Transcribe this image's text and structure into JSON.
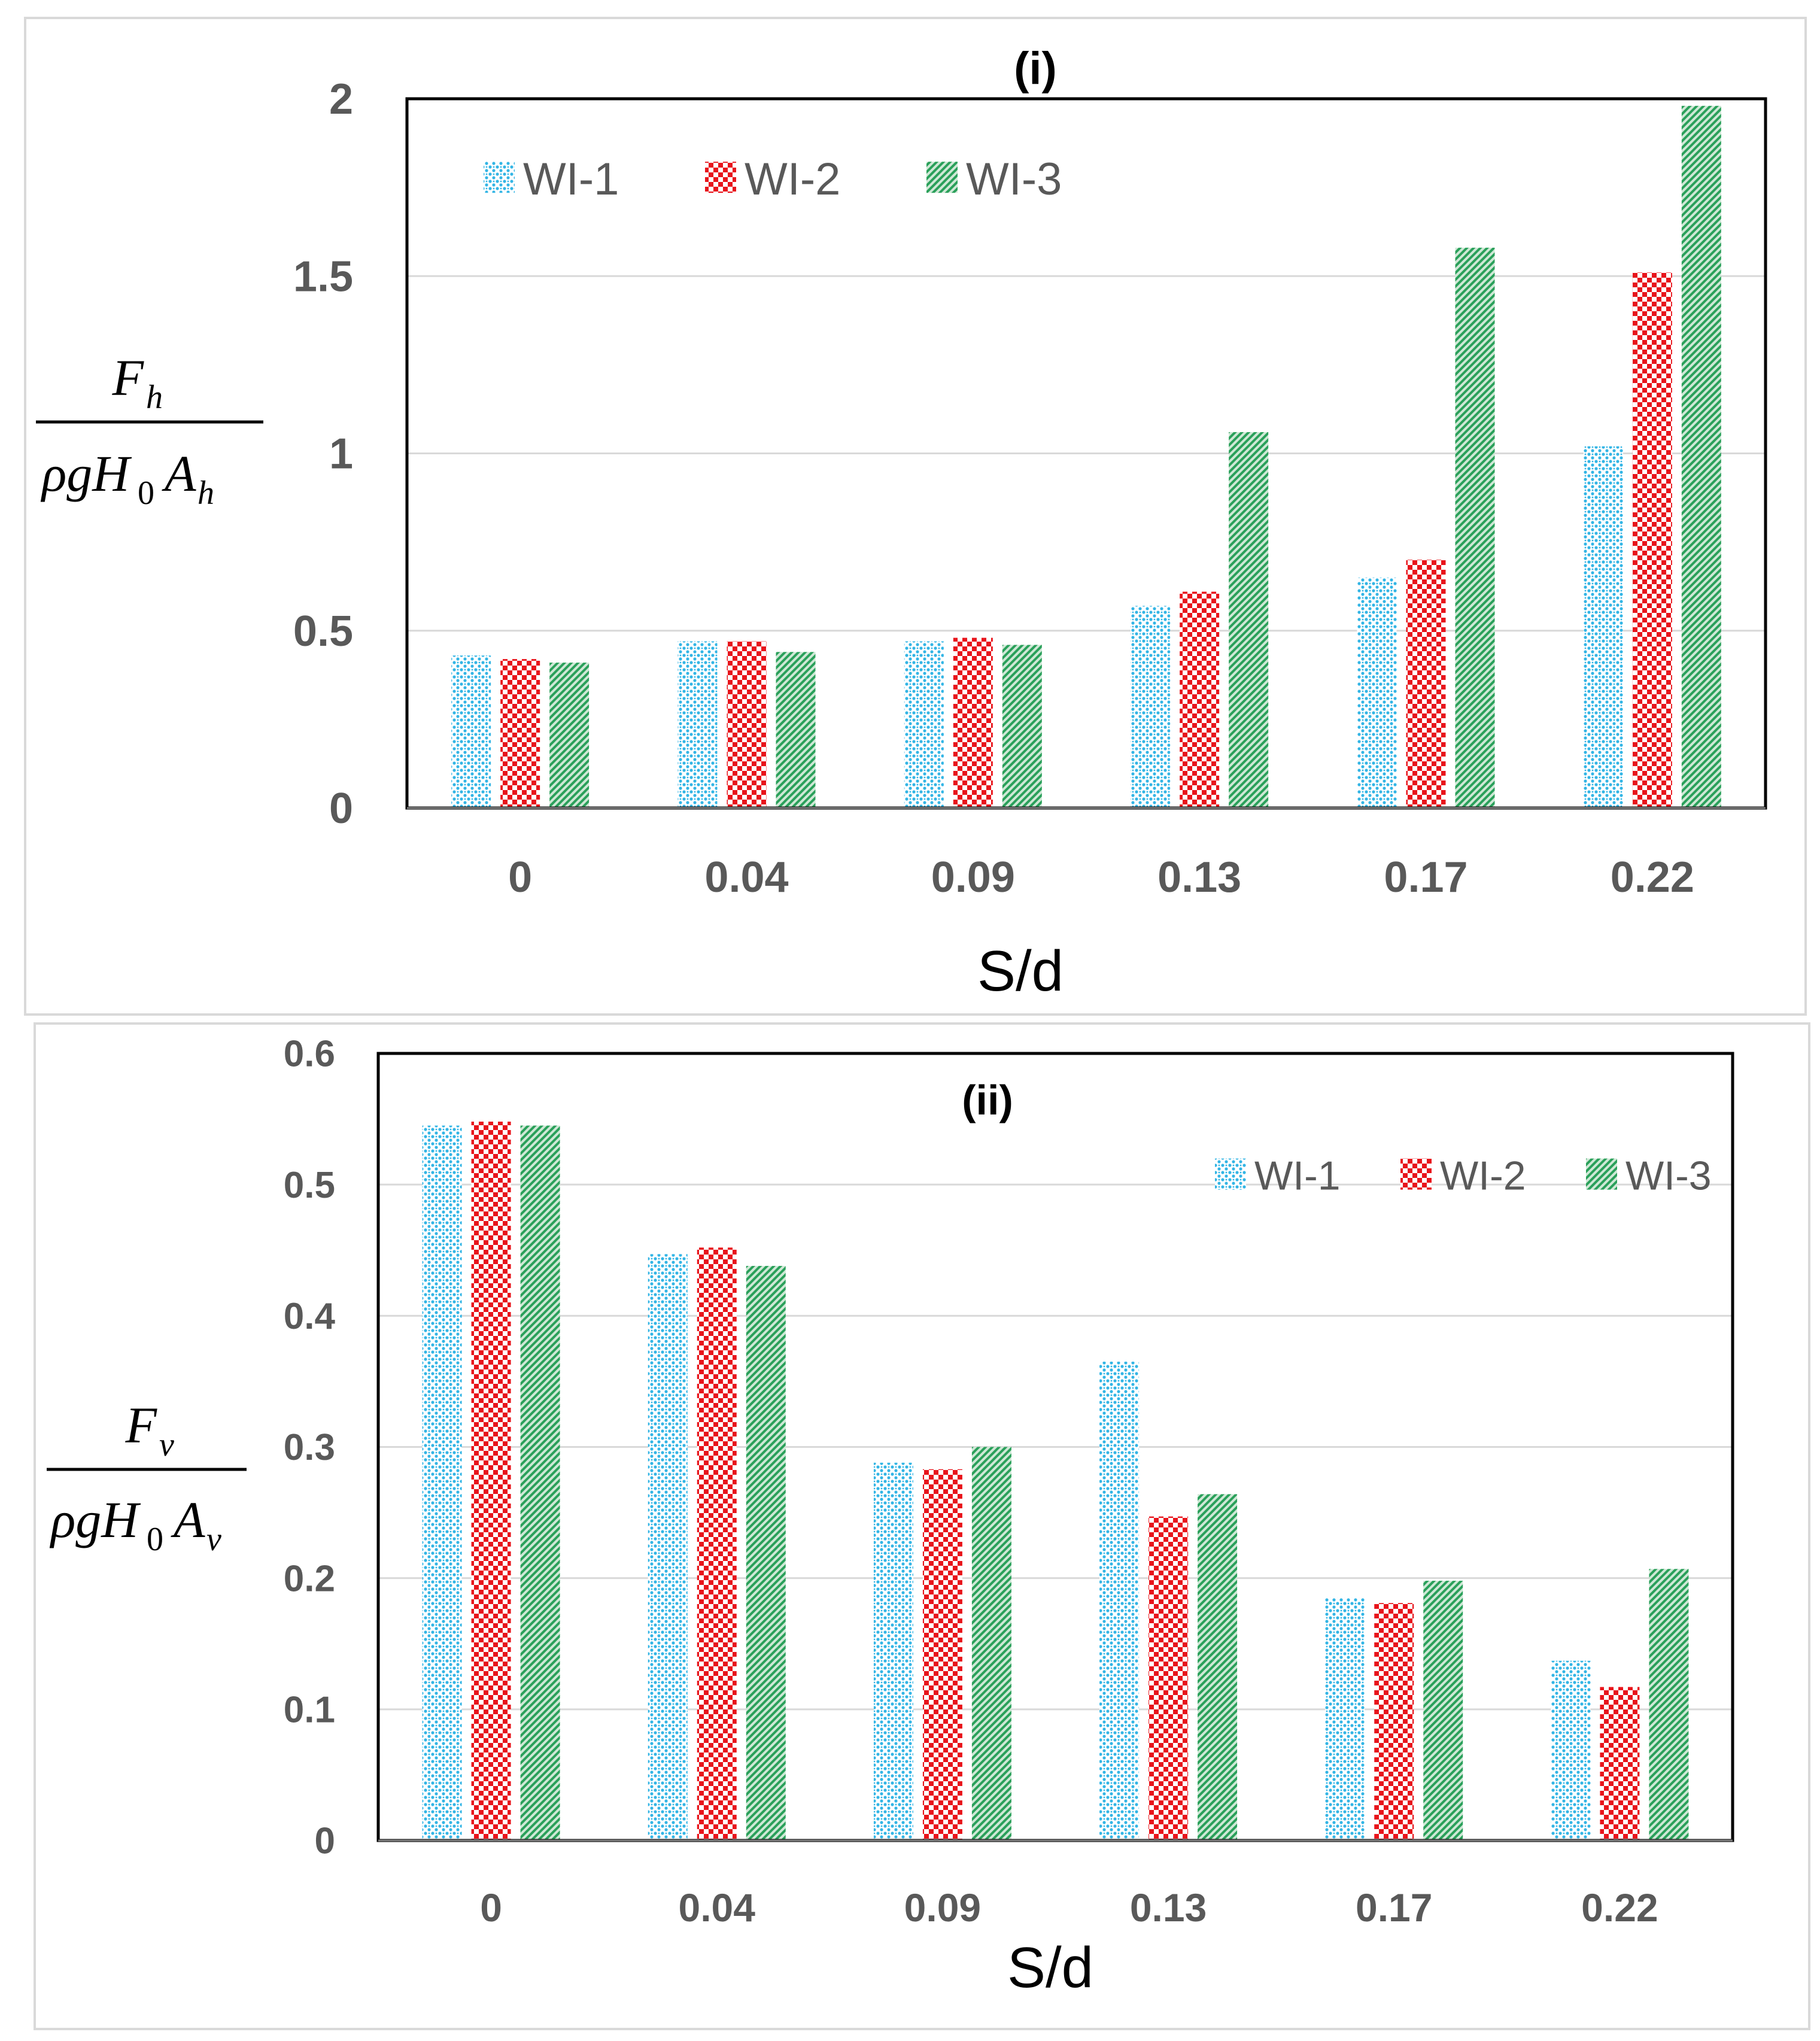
{
  "colors": {
    "wi1": "#33b5e5",
    "wi2": "#e8141b",
    "wi3": "#2aa05a",
    "grid": "#d9d9d9",
    "tick": "#595959"
  },
  "chart_data": [
    {
      "type": "bar",
      "title": "(i)",
      "categories": [
        "0",
        "0.04",
        "0.09",
        "0.13",
        "0.17",
        "0.22"
      ],
      "series": [
        {
          "name": "WI-1",
          "values": [
            0.43,
            0.47,
            0.47,
            0.57,
            0.65,
            1.02
          ]
        },
        {
          "name": "WI-2",
          "values": [
            0.42,
            0.47,
            0.48,
            0.61,
            0.7,
            1.51
          ]
        },
        {
          "name": "WI-3",
          "values": [
            0.41,
            0.44,
            0.46,
            1.06,
            1.58,
            1.98
          ]
        }
      ],
      "xlabel": "S/d",
      "ylabel": {
        "numerator": "F",
        "num_sub": "h",
        "denominator": "ρgH",
        "den_sub0": "0",
        "den_A": "A",
        "den_sub": "h"
      },
      "ylim": [
        0,
        2
      ],
      "yticks": [
        "0",
        "0.5",
        "1",
        "1.5",
        "2"
      ],
      "legend": "top-left"
    },
    {
      "type": "bar",
      "title": "(ii)",
      "categories": [
        "0",
        "0.04",
        "0.09",
        "0.13",
        "0.17",
        "0.22"
      ],
      "series": [
        {
          "name": "WI-1",
          "values": [
            0.545,
            0.447,
            0.288,
            0.365,
            0.185,
            0.137
          ]
        },
        {
          "name": "WI-2",
          "values": [
            0.548,
            0.452,
            0.283,
            0.247,
            0.181,
            0.117
          ]
        },
        {
          "name": "WI-3",
          "values": [
            0.545,
            0.438,
            0.3,
            0.264,
            0.198,
            0.207
          ]
        }
      ],
      "xlabel": "S/d",
      "ylabel": {
        "numerator": "F",
        "num_sub": "v",
        "denominator": "ρgH",
        "den_sub0": "0",
        "den_A": "A",
        "den_sub": "v"
      },
      "ylim": [
        0,
        0.6
      ],
      "yticks": [
        "0",
        "0.1",
        "0.2",
        "0.3",
        "0.4",
        "0.5",
        "0.6"
      ],
      "legend": "top-right"
    }
  ]
}
